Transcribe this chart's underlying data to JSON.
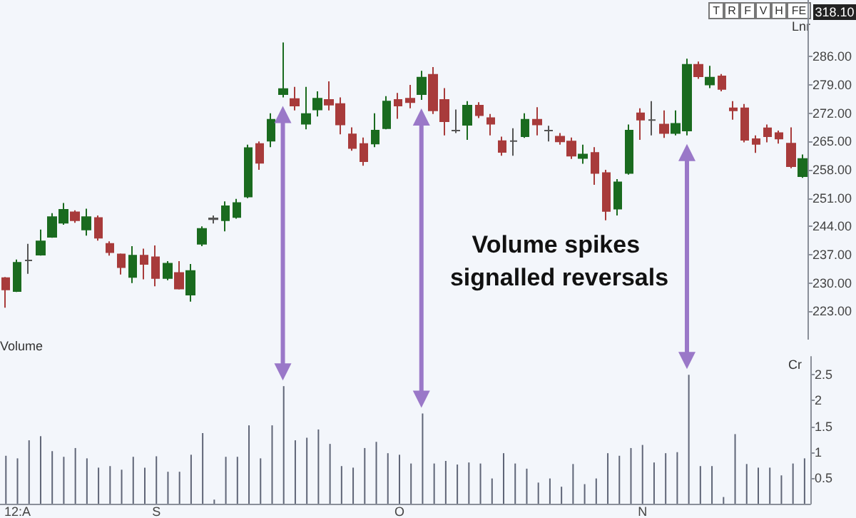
{
  "chart_data": [
    {
      "type": "candlestick",
      "categories": [
        null,
        "12:A",
        null,
        null,
        null,
        null,
        null,
        null,
        null,
        null,
        null,
        null,
        null,
        "S",
        null,
        null,
        null,
        null,
        null,
        null,
        null,
        null,
        null,
        null,
        null,
        null,
        null,
        null,
        null,
        null,
        null,
        null,
        null,
        null,
        "O",
        null,
        null,
        null,
        null,
        null,
        null,
        null,
        null,
        null,
        null,
        null,
        null,
        null,
        null,
        null,
        null,
        null,
        null,
        null,
        null,
        "N",
        null,
        null,
        null,
        null,
        null,
        null,
        null,
        null,
        null,
        null,
        null,
        null,
        null,
        null
      ],
      "ohlc": [
        [
          231.2,
          231.5,
          223.9,
          228.4
        ],
        [
          228.0,
          235.8,
          227.8,
          235.0
        ],
        [
          235.6,
          239.7,
          232.3,
          235.6
        ],
        [
          237.0,
          243.2,
          236.8,
          240.3
        ],
        [
          241.4,
          247.3,
          241.2,
          246.3
        ],
        [
          244.9,
          249.8,
          244.4,
          248.1
        ],
        [
          247.5,
          248.0,
          244.9,
          245.5
        ],
        [
          243.2,
          248.4,
          241.7,
          246.3
        ],
        [
          246.1,
          246.7,
          240.5,
          241.2
        ],
        [
          239.7,
          240.3,
          236.8,
          237.6
        ],
        [
          237.1,
          237.3,
          232.1,
          233.9
        ],
        [
          231.5,
          239.1,
          230.0,
          236.8
        ],
        [
          236.8,
          238.5,
          230.9,
          234.7
        ],
        [
          236.4,
          239.3,
          229.2,
          231.2
        ],
        [
          231.2,
          235.4,
          230.7,
          234.8
        ],
        [
          232.5,
          235.4,
          228.4,
          228.6
        ],
        [
          227.1,
          234.7,
          225.4,
          233.0
        ],
        [
          239.7,
          244.0,
          239.1,
          243.4
        ],
        [
          245.8,
          246.7,
          244.7,
          246.0
        ],
        [
          245.5,
          250.2,
          242.8,
          249.0
        ],
        [
          246.3,
          250.8,
          245.9,
          249.8
        ],
        [
          251.4,
          264.2,
          251.0,
          263.4
        ],
        [
          264.4,
          265.0,
          258.0,
          259.7
        ],
        [
          265.2,
          272.0,
          263.6,
          270.4
        ],
        [
          276.7,
          289.5,
          275.9,
          278.0
        ],
        [
          275.5,
          278.5,
          272.7,
          273.9
        ],
        [
          269.4,
          278.5,
          268.0,
          271.8
        ],
        [
          272.9,
          277.4,
          271.2,
          275.6
        ],
        [
          275.3,
          279.9,
          272.7,
          274.1
        ],
        [
          274.3,
          275.9,
          266.8,
          269.2
        ],
        [
          266.8,
          268.5,
          262.7,
          263.4
        ],
        [
          264.4,
          266.0,
          259.0,
          260.1
        ],
        [
          264.5,
          272.0,
          263.6,
          267.7
        ],
        [
          268.3,
          276.2,
          268.0,
          274.9
        ],
        [
          275.3,
          277.0,
          270.6,
          273.9
        ],
        [
          275.6,
          279.0,
          273.2,
          274.7
        ],
        [
          276.7,
          282.5,
          275.3,
          280.8
        ],
        [
          281.5,
          283.4,
          271.8,
          272.7
        ],
        [
          275.3,
          278.2,
          266.5,
          270.0
        ],
        [
          267.7,
          272.9,
          267.1,
          267.7
        ],
        [
          269.1,
          275.0,
          265.4,
          273.9
        ],
        [
          273.9,
          274.7,
          270.8,
          271.5
        ],
        [
          270.8,
          271.8,
          266.5,
          269.4
        ],
        [
          265.1,
          266.2,
          261.5,
          262.4
        ],
        [
          265.1,
          268.3,
          261.5,
          265.1
        ],
        [
          266.3,
          272.0,
          265.9,
          270.4
        ],
        [
          270.4,
          273.5,
          266.5,
          269.2
        ],
        [
          267.7,
          268.9,
          265.0,
          267.7
        ],
        [
          266.2,
          267.1,
          264.2,
          265.0
        ],
        [
          265.0,
          266.0,
          260.7,
          261.5
        ],
        [
          260.9,
          264.2,
          259.5,
          261.8
        ],
        [
          262.2,
          263.6,
          254.3,
          257.2
        ],
        [
          257.2,
          258.0,
          245.5,
          247.8
        ],
        [
          248.4,
          255.7,
          246.7,
          254.9
        ],
        [
          257.2,
          269.2,
          256.8,
          267.7
        ],
        [
          272.0,
          273.2,
          265.4,
          270.4
        ],
        [
          270.3,
          275.0,
          266.5,
          270.3
        ],
        [
          269.2,
          272.7,
          265.9,
          267.1
        ],
        [
          267.1,
          272.7,
          266.5,
          269.4
        ],
        [
          267.7,
          285.5,
          266.5,
          284.0
        ],
        [
          284.0,
          284.8,
          280.5,
          281.1
        ],
        [
          279.1,
          283.7,
          278.2,
          280.8
        ],
        [
          281.1,
          281.7,
          277.4,
          278.0
        ],
        [
          273.2,
          275.0,
          270.4,
          272.7
        ],
        [
          273.2,
          274.3,
          264.8,
          265.4
        ],
        [
          265.6,
          266.5,
          262.2,
          264.4
        ],
        [
          268.3,
          269.2,
          264.8,
          266.3
        ],
        [
          267.1,
          267.7,
          264.5,
          265.7
        ],
        [
          264.5,
          268.5,
          258.4,
          258.9
        ],
        [
          256.4,
          261.8,
          256.0,
          260.7
        ]
      ],
      "colors": [
        "#a83b3b",
        "#1a6b1f",
        "#555555",
        "#1a6b1f",
        "#1a6b1f",
        "#1a6b1f",
        "#a83b3b",
        "#1a6b1f",
        "#a83b3b",
        "#a83b3b",
        "#a83b3b",
        "#1a6b1f",
        "#a83b3b",
        "#a83b3b",
        "#1a6b1f",
        "#a83b3b",
        "#1a6b1f",
        "#1a6b1f",
        "#555555",
        "#1a6b1f",
        "#1a6b1f",
        "#1a6b1f",
        "#a83b3b",
        "#1a6b1f",
        "#1a6b1f",
        "#a83b3b",
        "#1a6b1f",
        "#1a6b1f",
        "#a83b3b",
        "#a83b3b",
        "#a83b3b",
        "#a83b3b",
        "#1a6b1f",
        "#1a6b1f",
        "#a83b3b",
        "#a83b3b",
        "#1a6b1f",
        "#a83b3b",
        "#a83b3b",
        "#555555",
        "#1a6b1f",
        "#a83b3b",
        "#a83b3b",
        "#a83b3b",
        "#555555",
        "#1a6b1f",
        "#a83b3b",
        "#555555",
        "#a83b3b",
        "#a83b3b",
        "#1a6b1f",
        "#a83b3b",
        "#a83b3b",
        "#1a6b1f",
        "#1a6b1f",
        "#a83b3b",
        "#555555",
        "#a83b3b",
        "#1a6b1f",
        "#1a6b1f",
        "#a83b3b",
        "#1a6b1f",
        "#a83b3b",
        "#a83b3b",
        "#a83b3b",
        "#a83b3b",
        "#a83b3b",
        "#a83b3b",
        "#a83b3b",
        "#1a6b1f"
      ],
      "tick_labels": "y",
      "ylim": [
        216,
        300
      ],
      "yticks": [
        {
          "value": 223,
          "label": "223.00"
        },
        {
          "value": 230,
          "label": "230.00"
        },
        {
          "value": 237,
          "label": "237.00"
        },
        {
          "value": 244,
          "label": "244.00"
        },
        {
          "value": 251,
          "label": "251.00"
        },
        {
          "value": 258,
          "label": "258.00"
        },
        {
          "value": 265,
          "label": "265.00"
        },
        {
          "value": 272,
          "label": "272.00"
        },
        {
          "value": 279,
          "label": "279.00"
        },
        {
          "value": 286,
          "label": "286.00"
        }
      ],
      "annotations": [
        "Volume spikes signalled reversals",
        "318.10",
        "Lnr",
        "T",
        "R",
        "F",
        "V",
        "H",
        "FE"
      ]
    },
    {
      "type": "bar",
      "title": "Volume",
      "ylabel": "Cr",
      "color": "#5f6577",
      "categories": [
        null,
        "12:A",
        null,
        null,
        null,
        null,
        null,
        null,
        null,
        null,
        null,
        null,
        null,
        "S",
        null,
        null,
        null,
        null,
        null,
        null,
        null,
        null,
        null,
        null,
        null,
        null,
        null,
        null,
        null,
        null,
        null,
        null,
        null,
        null,
        "O",
        null,
        null,
        null,
        null,
        null,
        null,
        null,
        null,
        null,
        null,
        null,
        null,
        null,
        null,
        null,
        null,
        null,
        null,
        null,
        null,
        "N",
        null,
        null,
        null,
        null,
        null,
        null,
        null,
        null,
        null,
        null,
        null,
        null,
        null,
        null
      ],
      "values": [
        0.93,
        0.88,
        1.23,
        1.31,
        1.02,
        0.91,
        1.08,
        0.88,
        0.7,
        0.73,
        0.66,
        0.91,
        0.7,
        0.92,
        0.62,
        0.62,
        0.95,
        1.37,
        0.08,
        0.91,
        0.91,
        1.52,
        0.88,
        1.52,
        2.28,
        1.23,
        1.28,
        1.44,
        1.16,
        0.73,
        0.7,
        1.08,
        1.2,
        0.98,
        0.95,
        0.78,
        1.75,
        0.78,
        0.83,
        0.76,
        0.8,
        0.78,
        0.49,
        0.98,
        0.78,
        0.68,
        0.41,
        0.49,
        0.33,
        0.77,
        0.38,
        0.49,
        0.98,
        0.93,
        1.08,
        1.14,
        0.8,
        0.98,
        1.0,
        2.5,
        0.73,
        0.73,
        0.13,
        1.35,
        0.77,
        0.7,
        0.7,
        0.55,
        0.78,
        0.88
      ],
      "ylim": [
        0,
        2.85
      ],
      "yticks": [
        0.5,
        1,
        1.5,
        2,
        2.5
      ]
    }
  ]
}
